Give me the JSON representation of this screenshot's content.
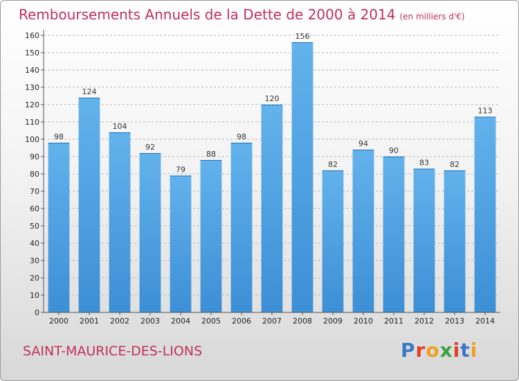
{
  "chart_data": {
    "type": "bar",
    "title": "Remboursements Annuels de la Dette de 2000 à 2014",
    "unit_note": "(en milliers d'€)",
    "categories": [
      "2000",
      "2001",
      "2002",
      "2003",
      "2004",
      "2005",
      "2006",
      "2007",
      "2008",
      "2009",
      "2010",
      "2011",
      "2012",
      "2013",
      "2014"
    ],
    "values": [
      98,
      124,
      104,
      92,
      79,
      88,
      98,
      120,
      156,
      82,
      94,
      90,
      83,
      82,
      113
    ],
    "yticks": [
      0,
      10,
      20,
      30,
      40,
      50,
      60,
      70,
      80,
      90,
      100,
      110,
      120,
      130,
      140,
      150,
      160
    ],
    "ylim": [
      0,
      160
    ],
    "grid": true,
    "bar_color": "#3d8fd6",
    "bar_color_light": "#62b2ec",
    "title_color": "#c0305a"
  },
  "footer": {
    "city": "SAINT-MAURICE-DES-LIONS",
    "logo_letters": [
      {
        "ch": "P",
        "color": "#3a78c8"
      },
      {
        "ch": "r",
        "color": "#e0402a"
      },
      {
        "ch": "o",
        "color": "#f0a020"
      },
      {
        "ch": "x",
        "color": "#3aa040"
      },
      {
        "ch": "i",
        "color": "#e0402a"
      },
      {
        "ch": "t",
        "color": "#3a78c8"
      },
      {
        "ch": "i",
        "color": "#f0a020"
      }
    ]
  }
}
